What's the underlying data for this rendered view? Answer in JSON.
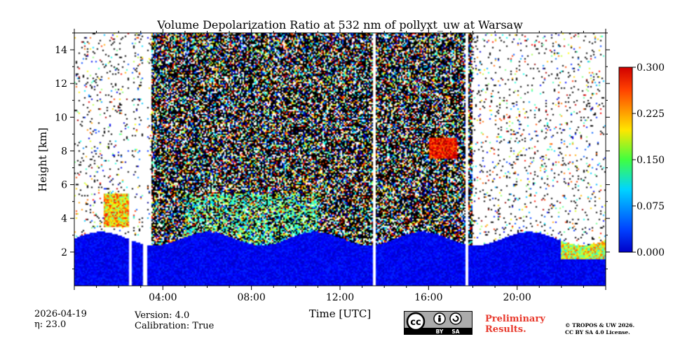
{
  "chart_data": {
    "type": "heatmap",
    "title": "Volume Depolarization Ratio at 532 nm of pollyxt_uw at Warsaw",
    "xlabel": "Time [UTC]",
    "ylabel": "Height [km]",
    "xlim": [
      0,
      24
    ],
    "ylim": [
      0,
      15
    ],
    "x_ticks": [
      {
        "value": 4,
        "label": "04:00"
      },
      {
        "value": 8,
        "label": "08:00"
      },
      {
        "value": 12,
        "label": "12:00"
      },
      {
        "value": 16,
        "label": "16:00"
      },
      {
        "value": 20,
        "label": "20:00"
      }
    ],
    "y_ticks": [
      {
        "value": 2,
        "label": "2"
      },
      {
        "value": 4,
        "label": "4"
      },
      {
        "value": 6,
        "label": "6"
      },
      {
        "value": 8,
        "label": "8"
      },
      {
        "value": 10,
        "label": "10"
      },
      {
        "value": 12,
        "label": "12"
      },
      {
        "value": 14,
        "label": "14"
      }
    ],
    "colorbar": {
      "range": [
        0.0,
        0.3
      ],
      "colormap": "jet",
      "ticks": [
        {
          "value": 0.0,
          "label": "0.000"
        },
        {
          "value": 0.075,
          "label": "0.075"
        },
        {
          "value": 0.15,
          "label": "0.150"
        },
        {
          "value": 0.225,
          "label": "0.225"
        },
        {
          "value": 0.3,
          "label": "0.300"
        }
      ]
    },
    "data_gaps_hours": [
      2.55,
      3.2,
      13.55,
      17.75
    ],
    "regions": [
      {
        "name": "boundary layer",
        "t_start": 0,
        "t_end": 24,
        "h_top_km": 2.8,
        "value": 0.02
      },
      {
        "name": "elevated aerosol layer",
        "t_start": 1.3,
        "t_end": 2.5,
        "h_bottom_km": 3.5,
        "h_top_km": 5.5,
        "value": 0.2
      },
      {
        "name": "cloud",
        "t_start": 16.0,
        "t_end": 17.3,
        "h_bottom_km": 7.5,
        "h_top_km": 8.8,
        "value": 0.26
      },
      {
        "name": "evening layer",
        "t_start": 22.0,
        "t_end": 24,
        "h_bottom_km": 1.6,
        "h_top_km": 2.6,
        "value": 0.2
      }
    ]
  },
  "footer": {
    "date": "2026-04-19",
    "eta": "η: 23.0",
    "version": "Version: 4.0",
    "calibration": "Calibration: True",
    "preliminary_line1": "Preliminary",
    "preliminary_line2": "Results.",
    "license_line1": "© TROPOS & UW 2026.",
    "license_line2": "CC BY SA 4.0 License.",
    "cc_badge": {
      "cc": "cc",
      "by": "BY",
      "sa": "SA"
    }
  },
  "colors": {
    "prelim": "#e8392c",
    "badge_bg": "#999999"
  }
}
